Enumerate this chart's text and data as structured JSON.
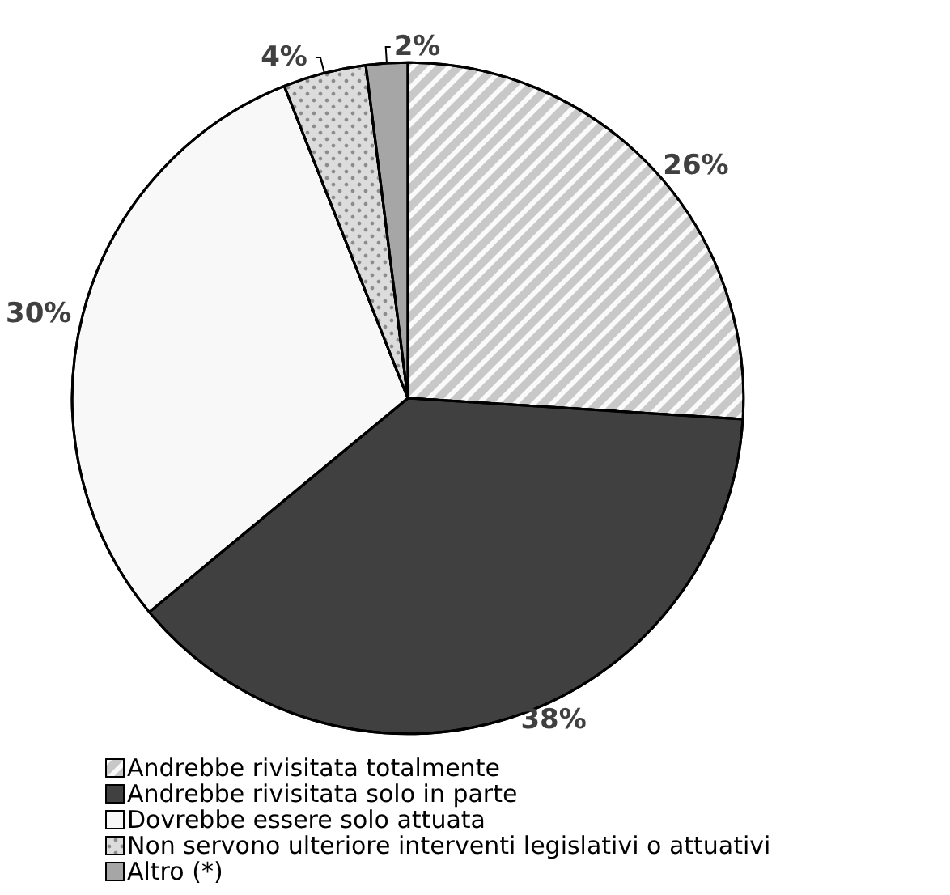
{
  "chart_data": {
    "type": "pie",
    "categories": [
      "Andrebbe rivisitata totalmente",
      "Andrebbe rivisitata solo in parte",
      "Dovrebbe essere solo attuata",
      "Non servono ulteriore interventi legislativi o attuativi",
      "Altro (*)"
    ],
    "values": [
      26,
      38,
      30,
      4,
      2
    ],
    "colors": [
      "#c8c8c8",
      "#404040",
      "#f8f8f8",
      "#dcdcdc",
      "#a6a6a6"
    ],
    "value_labels": [
      "26%",
      "38%",
      "30%",
      "4%",
      "2%"
    ],
    "legend": "bottom"
  }
}
